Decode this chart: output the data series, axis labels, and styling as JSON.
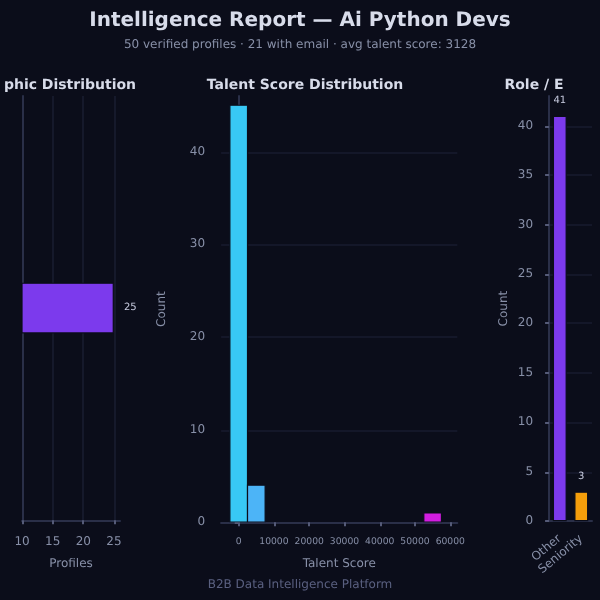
{
  "chart_data": [
    {
      "type": "other",
      "title": "Intelligence Report — Ai Python Devs",
      "subtitle": "50 verified profiles · 21 with email · avg talent score: 3128",
      "annotations": [
        "B2B Data Intelligence Platform"
      ]
    },
    {
      "type": "bar",
      "title": "phic Distribution",
      "orientation": "horizontal",
      "categories": [
        null
      ],
      "values": [
        25
      ],
      "color": "#7c3aed",
      "data_labels": true,
      "xlabel": "Profiles",
      "xlim": [
        10,
        26
      ],
      "xticks": [
        10,
        15,
        20,
        25
      ],
      "grid": "x"
    },
    {
      "type": "histogram",
      "title": "Talent Score Distribution",
      "bins": [
        -2500,
        2500,
        7500,
        12500,
        17500,
        22500,
        27500,
        32500,
        37500,
        42500,
        47500,
        52500,
        57500
      ],
      "values": [
        45,
        4,
        0,
        0,
        0,
        0,
        0,
        0,
        0,
        0,
        0,
        1
      ],
      "colors": [
        "#38c8f5",
        "#4cb4f7",
        null,
        null,
        null,
        null,
        null,
        null,
        null,
        null,
        null,
        "#d21de0"
      ],
      "xlabel": "Talent Score",
      "ylabel": "Count",
      "xlim": [
        -5000,
        62000
      ],
      "xticks": [
        0,
        10000,
        20000,
        30000,
        40000,
        50000,
        60000
      ],
      "ylim": [
        0,
        46
      ],
      "yticks": [
        0,
        10,
        20,
        30,
        40
      ],
      "grid": "y"
    },
    {
      "type": "bar",
      "title": "Role / E",
      "categories": [
        "Other",
        "Seniority"
      ],
      "values": [
        41,
        3
      ],
      "colors": [
        "#7c3aed",
        "#f59e0b"
      ],
      "data_labels": true,
      "ylabel": "Count",
      "ylim": [
        0,
        43
      ],
      "yticks": [
        0,
        5,
        10,
        15,
        20,
        25,
        30,
        35,
        40
      ],
      "grid": "y"
    }
  ]
}
